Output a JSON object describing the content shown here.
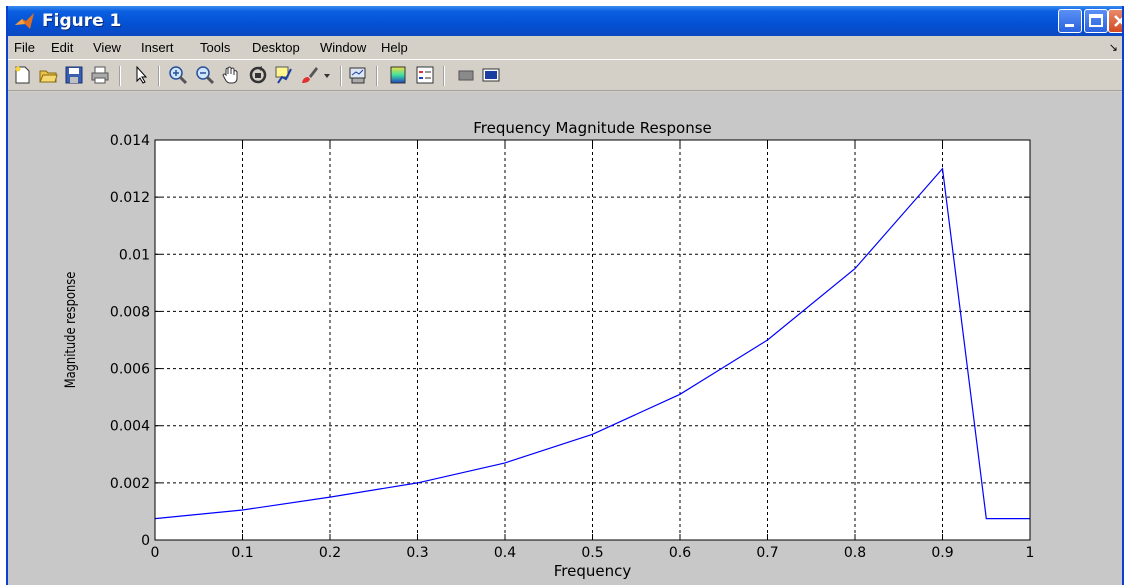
{
  "window": {
    "title": "Figure 1",
    "app_icon": "matlab-logo-icon",
    "controls": [
      "minimize-icon",
      "maximize-icon",
      "close-icon"
    ]
  },
  "menu": {
    "items": [
      "File",
      "Edit",
      "View",
      "Insert",
      "Tools",
      "Desktop",
      "Window",
      "Help"
    ]
  },
  "toolbar": {
    "buttons": [
      "new-figure-icon",
      "open-file-icon",
      "save-icon",
      "print-icon",
      "edit-plot-arrow-icon",
      "zoom-in-icon",
      "zoom-out-icon",
      "pan-hand-icon",
      "rotate-3d-icon",
      "data-cursor-icon",
      "brush-icon",
      "brush-dropdown-icon",
      "link-plot-icon",
      "colorbar-icon",
      "legend-icon",
      "hide-plot-tools-icon",
      "show-plot-tools-icon"
    ]
  },
  "colors": {
    "line": "#0000ff",
    "plot_background": "#ffffff",
    "figure_background": "#c8c8c8",
    "titlebar": "#0451d4"
  },
  "chart_data": {
    "type": "line",
    "title": "Frequency Magnitude Response",
    "xlabel": "Frequency",
    "ylabel": "Magnitude response",
    "xlim": [
      0,
      1
    ],
    "ylim": [
      0,
      0.014
    ],
    "grid": true,
    "xticks": [
      "0",
      "0.1",
      "0.2",
      "0.3",
      "0.4",
      "0.5",
      "0.6",
      "0.7",
      "0.8",
      "0.9",
      "1"
    ],
    "yticks": [
      "0",
      "0.002",
      "0.004",
      "0.006",
      "0.008",
      "0.01",
      "0.012",
      "0.014"
    ],
    "series": [
      {
        "x": [
          0,
          0.1,
          0.2,
          0.3,
          0.4,
          0.5,
          0.6,
          0.7,
          0.8,
          0.9,
          0.95,
          1.0
        ],
        "y": [
          0.00075,
          0.00105,
          0.0015,
          0.002,
          0.0027,
          0.0037,
          0.0051,
          0.007,
          0.0095,
          0.013,
          0.00075,
          0.00075
        ]
      }
    ]
  }
}
